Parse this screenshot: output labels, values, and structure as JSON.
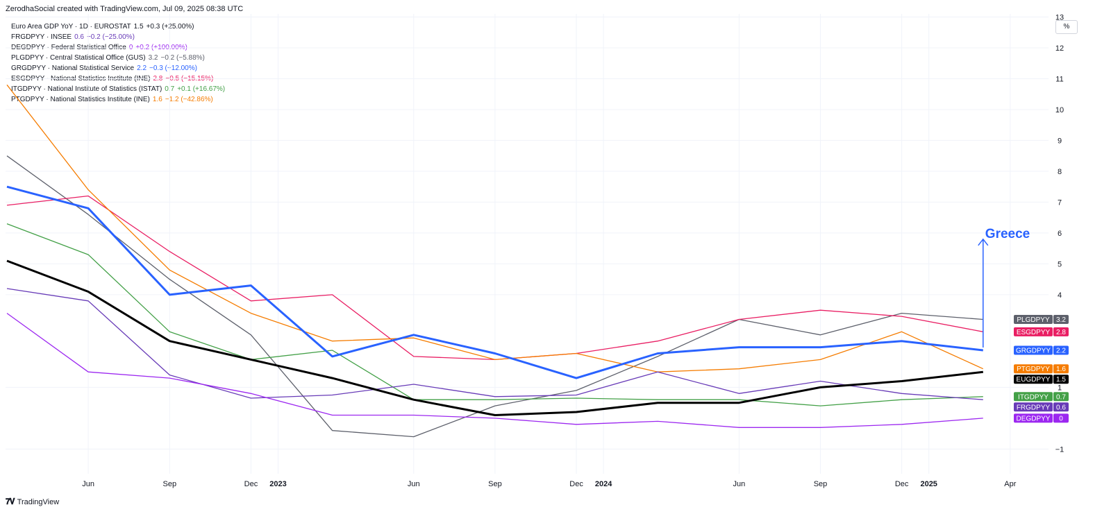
{
  "header": {
    "credit": "ZerodhaSocial created with TradingView.com, Jul 09, 2025 08:38 UTC"
  },
  "unit_label": "%",
  "footer": {
    "brand": "TradingView",
    "logo_icon": "tradingview-logo-icon"
  },
  "legend": [
    {
      "name": "Euro Area GDP YoY · 1D · EUROSTAT",
      "value": "1.5",
      "change": "+0.3 (+25.00%)",
      "color": "#131722"
    },
    {
      "name": "FRGDPYY · INSEE",
      "value": "0.6",
      "change": "−0.2 (−25.00%)",
      "color": "#673ab7"
    },
    {
      "name": "DEGDPYY · Federal Statistical Office",
      "value": "0",
      "change": "+0.2 (+100.00%)",
      "color": "#9c27f0"
    },
    {
      "name": "PLGDPYY · Central Statistical Office (GUS)",
      "value": "3.2",
      "change": "−0.2 (−5.88%)",
      "color": "#5d606b"
    },
    {
      "name": "GRGDPYY · National Statistical Service",
      "value": "2.2",
      "change": "−0.3 (−12.00%)",
      "color": "#2962ff"
    },
    {
      "name": "ESGDPYY · National Statistics Institute (INE)",
      "value": "2.8",
      "change": "−0.5 (−15.15%)",
      "color": "#e91e63"
    },
    {
      "name": "ITGDPYY · National Institute of Statistics (ISTAT)",
      "value": "0.7",
      "change": "+0.1 (+16.67%)",
      "color": "#43a047"
    },
    {
      "name": "PTGDPYY · National Statistics Institute (INE)",
      "value": "1.6",
      "change": "−1.2 (−42.86%)",
      "color": "#f57c00"
    }
  ],
  "chart_data": {
    "type": "line",
    "x_tick_labels": [
      "Jun",
      "Sep",
      "Dec",
      "2023",
      "Jun",
      "Sep",
      "Dec",
      "2024",
      "Jun",
      "Sep",
      "Dec",
      "2025",
      "Apr"
    ],
    "x": [
      "2022-03",
      "2022-06",
      "2022-09",
      "2022-12",
      "2023-03",
      "2023-06",
      "2023-09",
      "2023-12",
      "2024-03",
      "2024-06",
      "2024-09",
      "2024-12",
      "2025-03"
    ],
    "y_ticks": [
      -1,
      1,
      4,
      5,
      6,
      7,
      8,
      9,
      10,
      11,
      12,
      13
    ],
    "ylim": [
      -1.8,
      13.1
    ],
    "grid": true,
    "series": [
      {
        "name": "PLGDPYY",
        "color": "#5d606b",
        "width": 1.3,
        "values": [
          8.5,
          6.6,
          4.5,
          2.7,
          -0.4,
          -0.6,
          0.4,
          0.9,
          2.0,
          3.2,
          2.7,
          3.4,
          3.2
        ]
      },
      {
        "name": "ESGDPYY",
        "color": "#e91e63",
        "width": 1.3,
        "values": [
          6.9,
          7.2,
          5.4,
          3.8,
          4.0,
          2.0,
          1.9,
          2.1,
          2.5,
          3.2,
          3.5,
          3.3,
          2.8
        ]
      },
      {
        "name": "PTGDPYY",
        "color": "#f57c00",
        "width": 1.3,
        "values": [
          10.8,
          7.4,
          4.8,
          3.4,
          2.5,
          2.6,
          1.9,
          2.1,
          1.5,
          1.6,
          1.9,
          2.8,
          1.6
        ]
      },
      {
        "name": "ITGDPYY",
        "color": "#43a047",
        "width": 1.3,
        "values": [
          6.3,
          5.3,
          2.8,
          1.9,
          2.2,
          0.6,
          0.6,
          0.65,
          0.6,
          0.6,
          0.4,
          0.6,
          0.7
        ]
      },
      {
        "name": "FRGDPYY",
        "color": "#673ab7",
        "width": 1.3,
        "values": [
          4.2,
          3.8,
          1.4,
          0.65,
          0.75,
          1.1,
          0.7,
          0.75,
          1.5,
          0.8,
          1.2,
          0.8,
          0.6
        ]
      },
      {
        "name": "DEGDPYY",
        "color": "#9c27f0",
        "width": 1.3,
        "values": [
          3.4,
          1.5,
          1.3,
          0.8,
          0.1,
          0.1,
          0.0,
          -0.2,
          -0.1,
          -0.3,
          -0.3,
          -0.2,
          0.0
        ]
      },
      {
        "name": "EUGDPYY",
        "color": "#000000",
        "width": 3,
        "values": [
          5.1,
          4.1,
          2.5,
          1.9,
          1.3,
          0.6,
          0.1,
          0.2,
          0.5,
          0.5,
          1.0,
          1.2,
          1.5
        ]
      },
      {
        "name": "GRGDPYY",
        "color": "#2962ff",
        "width": 3,
        "values": [
          7.5,
          6.8,
          4.0,
          4.3,
          2.0,
          2.7,
          2.1,
          1.3,
          2.1,
          2.3,
          2.3,
          2.5,
          2.2
        ]
      }
    ],
    "price_tags": [
      {
        "label": "PLGDPYY",
        "value": "3.2",
        "color": "#5d606b"
      },
      {
        "label": "ESGDPYY",
        "value": "2.8",
        "color": "#e91e63"
      },
      {
        "label": "GRGDPYY",
        "value": "2.2",
        "color": "#2962ff"
      },
      {
        "label": "PTGDPYY",
        "value": "1.6",
        "color": "#f57c00"
      },
      {
        "label": "EUGDPYY",
        "value": "1.5",
        "color": "#000000"
      },
      {
        "label": "ITGDPYY",
        "value": "0.7",
        "color": "#43a047"
      },
      {
        "label": "FRGDPYY",
        "value": "0.6",
        "color": "#673ab7"
      },
      {
        "label": "DEGDPYY",
        "value": "0",
        "color": "#9c27f0"
      }
    ],
    "annotation": {
      "text": "Greece",
      "color": "#2962ff",
      "arrow": "up",
      "from_value": 2.2,
      "to_value": 5.8
    }
  }
}
